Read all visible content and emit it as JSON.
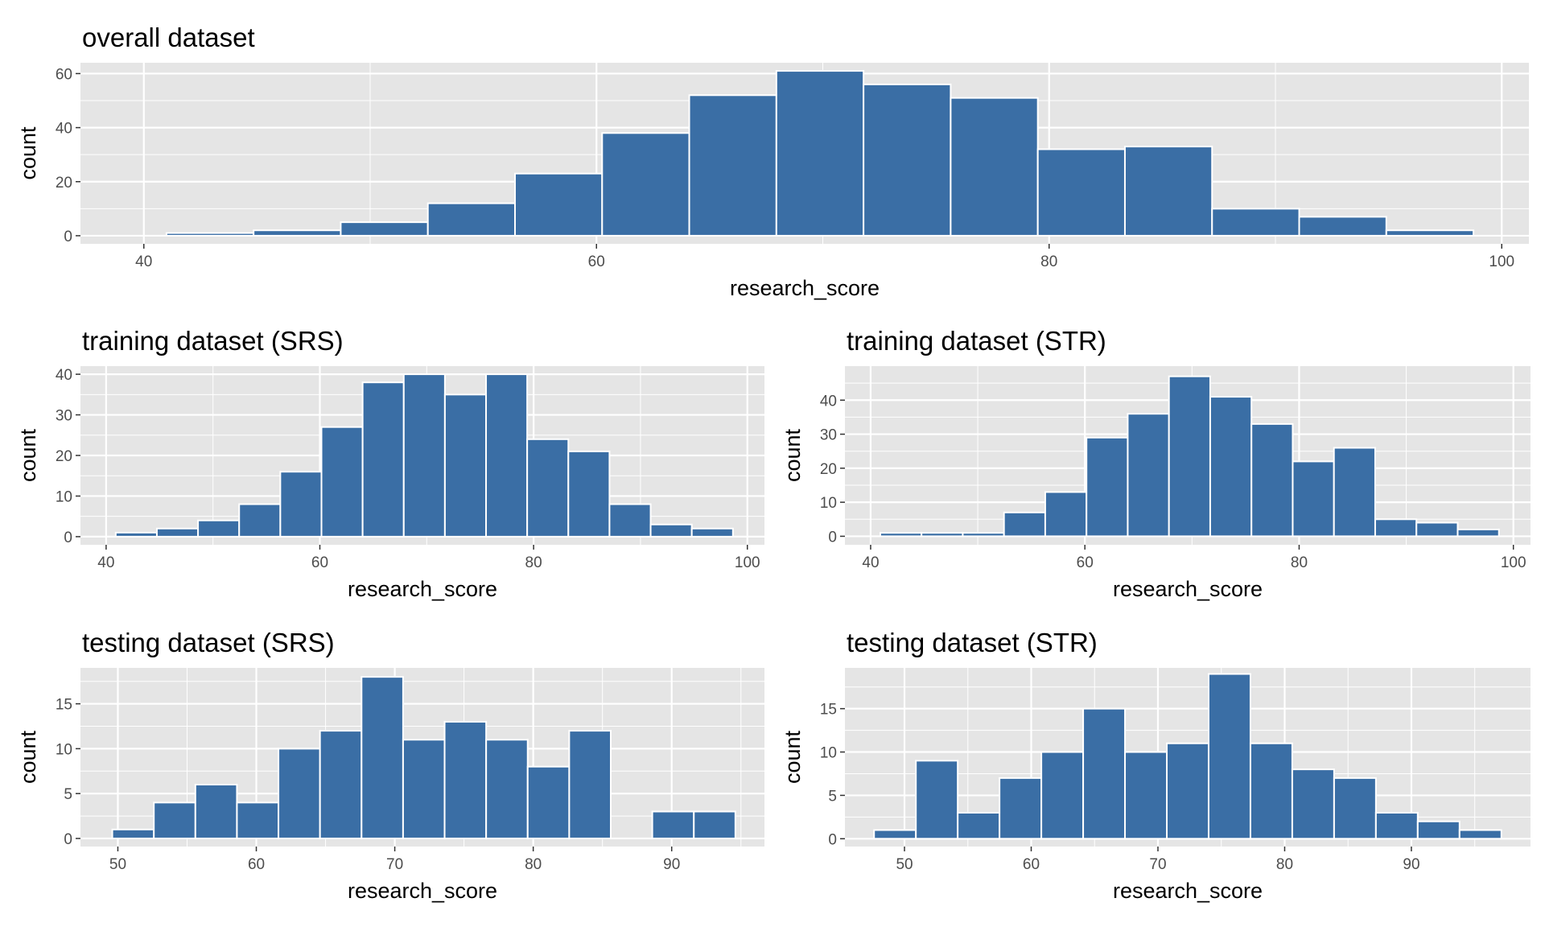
{
  "chart_data": [
    {
      "type": "bar",
      "title": "overall dataset",
      "xlabel": "research_score",
      "ylabel": "count",
      "xlim": [
        37.2,
        101.2
      ],
      "ylim": [
        -3,
        64
      ],
      "xticks": [
        40,
        60,
        80,
        100
      ],
      "yticks": [
        0,
        20,
        40,
        60
      ],
      "xminor": [
        50,
        70,
        90
      ],
      "yminor": [
        10,
        30,
        50
      ],
      "bin_start": 41.0,
      "bin_width": 3.85,
      "values": [
        1,
        2,
        5,
        12,
        23,
        38,
        52,
        61,
        56,
        51,
        32,
        33,
        10,
        7,
        2
      ]
    },
    {
      "type": "bar",
      "title": "training dataset (SRS)",
      "xlabel": "research_score",
      "ylabel": "count",
      "xlim": [
        37.6,
        101.6
      ],
      "ylim": [
        -2,
        42
      ],
      "xticks": [
        40,
        60,
        80,
        100
      ],
      "yticks": [
        0,
        10,
        20,
        30,
        40
      ],
      "xminor": [
        50,
        70,
        90
      ],
      "yminor": [
        5,
        15,
        25,
        35
      ],
      "bin_start": 40.9,
      "bin_width": 3.85,
      "values": [
        1,
        2,
        4,
        8,
        16,
        27,
        38,
        40,
        35,
        40,
        24,
        21,
        8,
        3,
        2
      ]
    },
    {
      "type": "bar",
      "title": "training dataset (STR)",
      "xlabel": "research_score",
      "ylabel": "count",
      "xlim": [
        37.6,
        101.6
      ],
      "ylim": [
        -2.5,
        50
      ],
      "xticks": [
        40,
        60,
        80,
        100
      ],
      "yticks": [
        0,
        10,
        20,
        30,
        40
      ],
      "xminor": [
        50,
        70,
        90
      ],
      "yminor": [
        5,
        15,
        25,
        35,
        45
      ],
      "bin_start": 40.9,
      "bin_width": 3.85,
      "values": [
        1,
        1,
        1,
        7,
        13,
        29,
        36,
        47,
        41,
        33,
        22,
        26,
        5,
        4,
        2
      ]
    },
    {
      "type": "bar",
      "title": "testing dataset (SRS)",
      "xlabel": "research_score",
      "ylabel": "count",
      "xlim": [
        47.3,
        96.7
      ],
      "ylim": [
        -0.9,
        19
      ],
      "xticks": [
        50,
        60,
        70,
        80,
        90
      ],
      "yticks": [
        0,
        5,
        10,
        15
      ],
      "xminor": [
        55,
        65,
        75,
        85,
        95
      ],
      "yminor": [
        2.5,
        7.5,
        12.5,
        17.5
      ],
      "bin_start": 49.6,
      "bin_width": 3.0,
      "values": [
        1,
        4,
        6,
        4,
        10,
        12,
        18,
        11,
        13,
        11,
        8,
        12,
        0,
        3,
        3
      ]
    },
    {
      "type": "bar",
      "title": "testing dataset (STR)",
      "xlabel": "research_score",
      "ylabel": "count",
      "xlim": [
        45.3,
        99.4
      ],
      "ylim": [
        -0.9,
        19.7
      ],
      "xticks": [
        50,
        60,
        70,
        80,
        90
      ],
      "yticks": [
        0,
        5,
        10,
        15
      ],
      "xminor": [
        55,
        65,
        75,
        85,
        95
      ],
      "yminor": [
        2.5,
        7.5,
        12.5,
        17.5
      ],
      "bin_start": 47.6,
      "bin_width": 3.3,
      "values": [
        1,
        9,
        3,
        7,
        10,
        15,
        10,
        11,
        19,
        11,
        8,
        7,
        3,
        2,
        1
      ]
    }
  ],
  "colors": {
    "bar_fill": "#3a6ea5",
    "bar_outline": "#ffffff",
    "panel_bg": "#e5e5e5",
    "grid": "#ffffff",
    "tick_text": "#4d4d4d",
    "tick_mark": "#333333"
  }
}
